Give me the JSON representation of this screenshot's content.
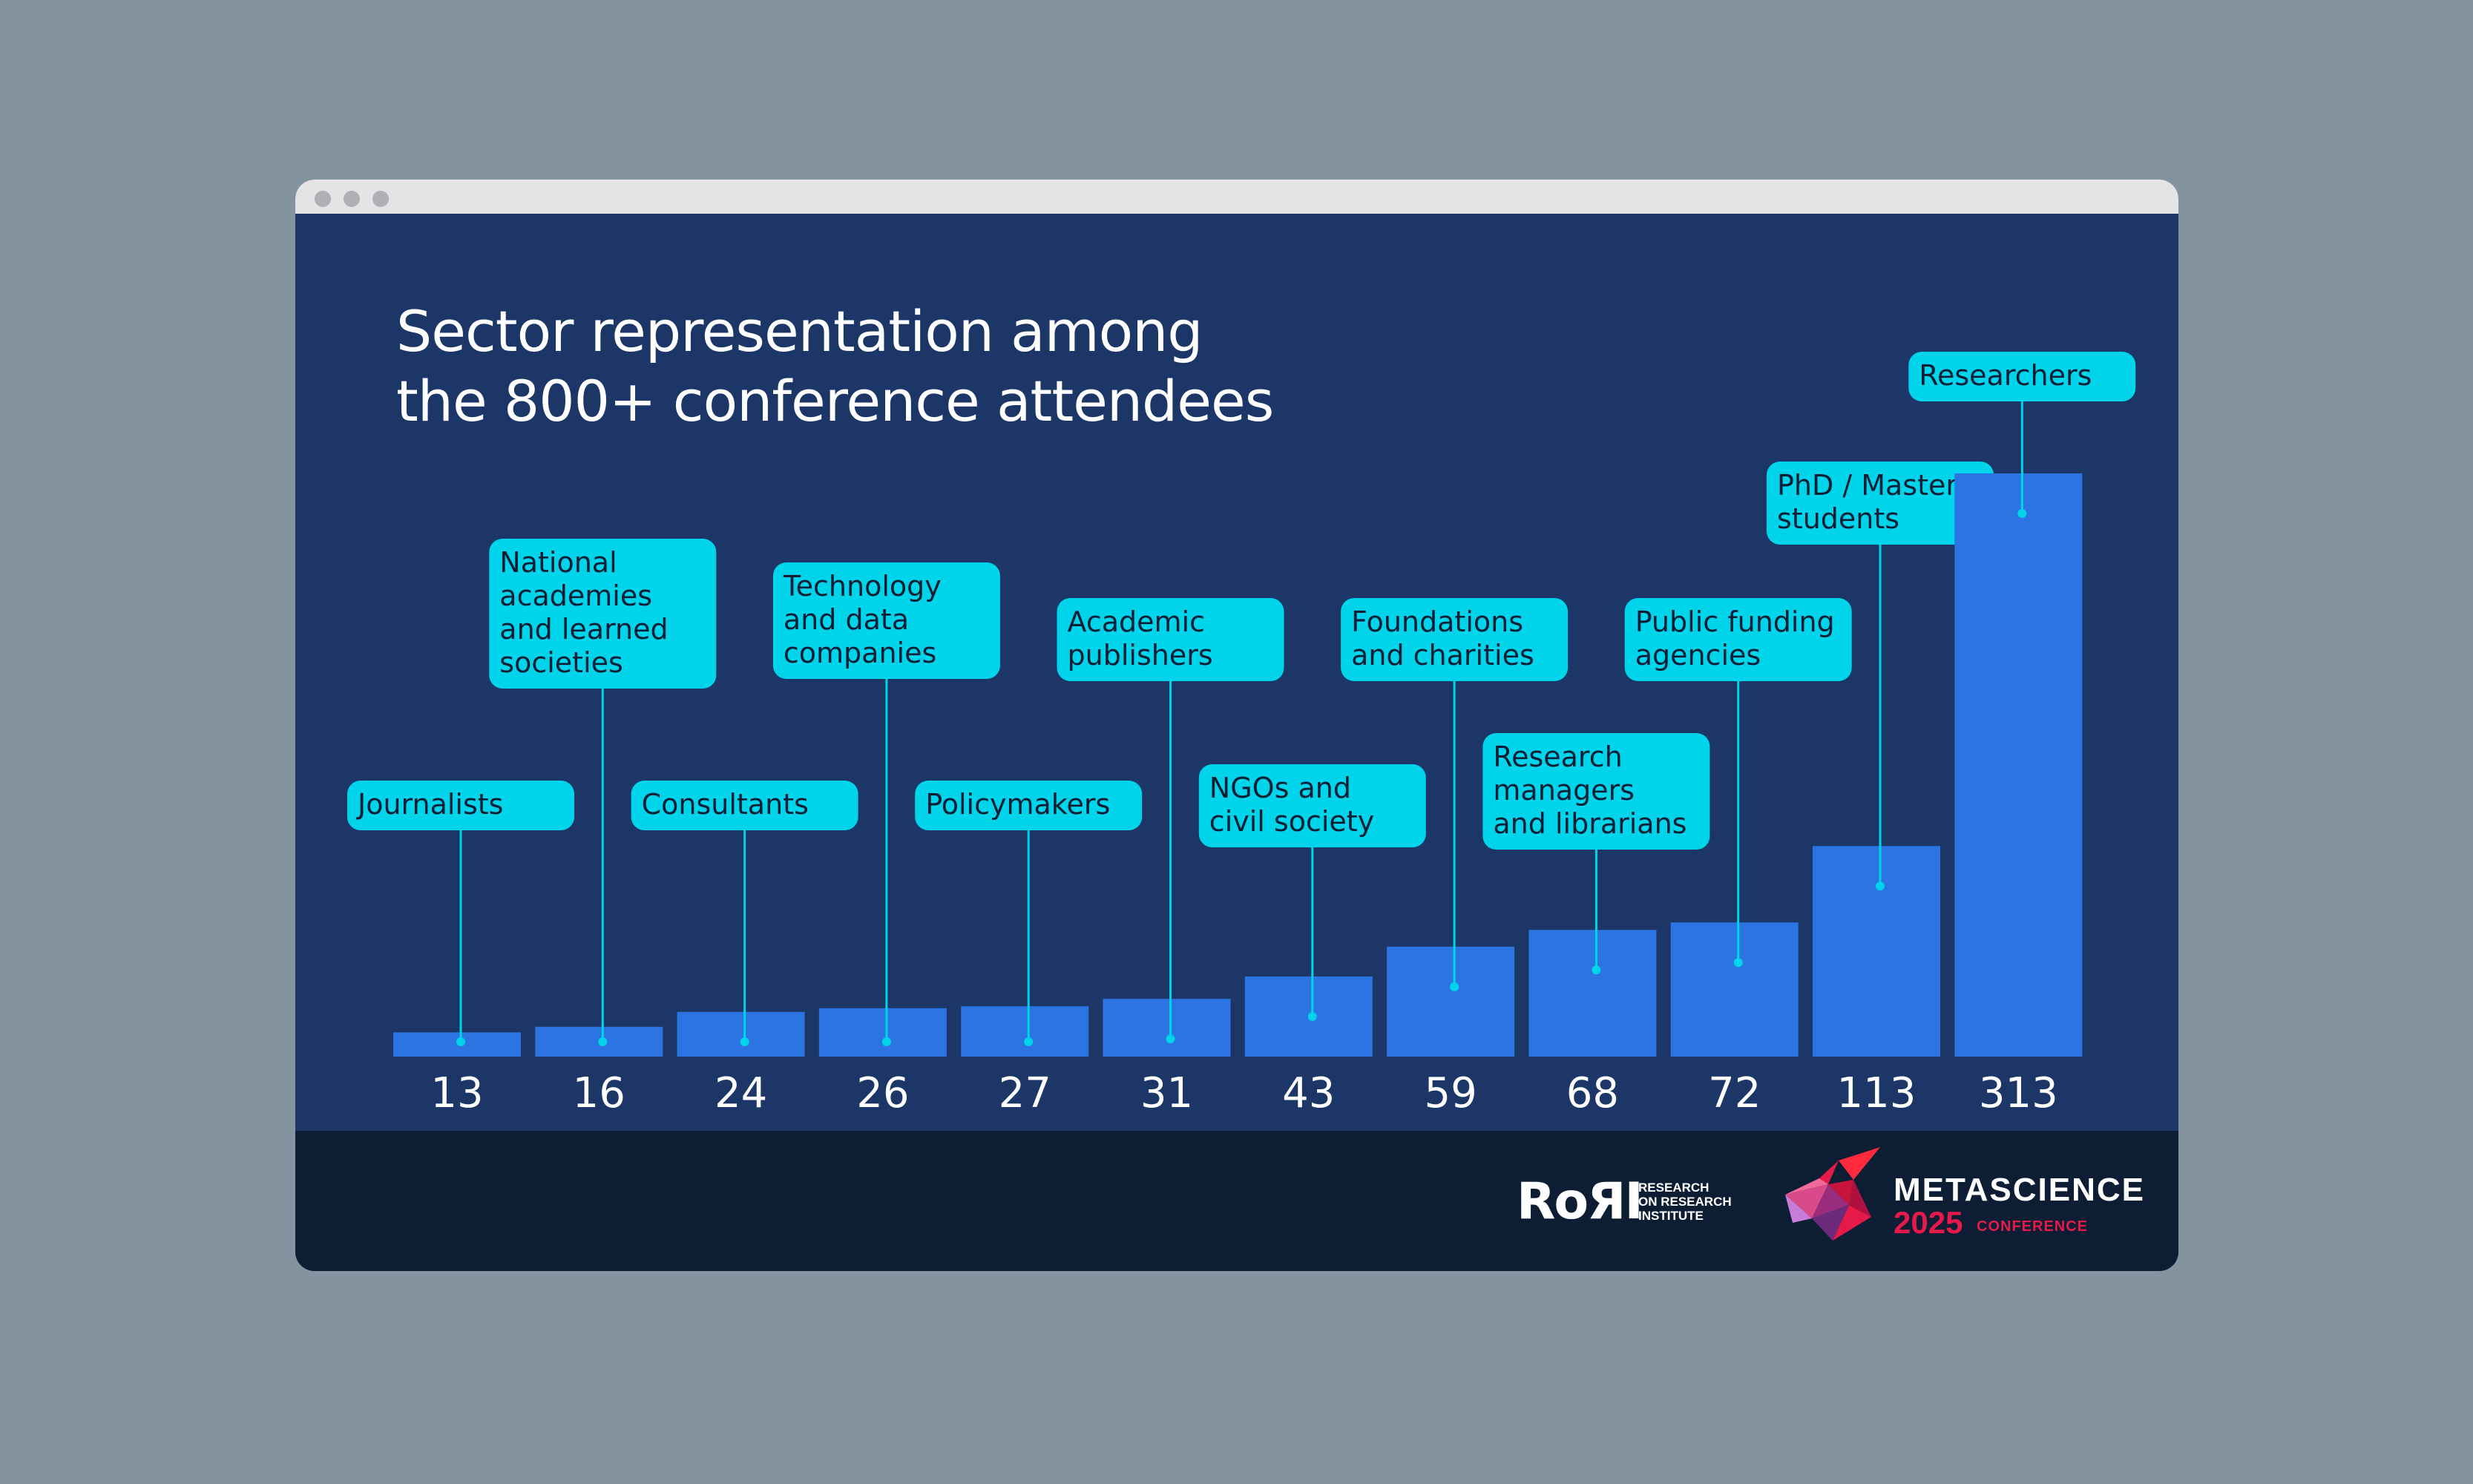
{
  "chart_data": {
    "type": "bar",
    "title": "Sector representation among\nthe 800+ conference attendees",
    "xlabel": "",
    "ylabel": "",
    "ylim": [
      0,
      313
    ],
    "grid": false,
    "categories": [
      "Journalists",
      "National academies and learned societies",
      "Consultants",
      "Technology and data companies",
      "Policymakers",
      "Academic publishers",
      "NGOs and civil society",
      "Foundations and charities",
      "Research managers and librarians",
      "Public funding agencies",
      "PhD / Masters' students",
      "Researchers"
    ],
    "category_display": [
      [
        "Journalists"
      ],
      [
        "National",
        "academies",
        "and learned",
        "societies"
      ],
      [
        "Consultants"
      ],
      [
        "Technology",
        "and data",
        "companies"
      ],
      [
        "Policymakers"
      ],
      [
        "Academic",
        "publishers"
      ],
      [
        "NGOs and",
        "civil society"
      ],
      [
        "Foundations",
        "and charities"
      ],
      [
        "Research",
        "managers",
        "and librarians"
      ],
      [
        "Public funding",
        "agencies"
      ],
      [
        "PhD / Masters’",
        "students"
      ],
      [
        "Researchers"
      ]
    ],
    "values": [
      13,
      16,
      24,
      26,
      27,
      31,
      43,
      59,
      68,
      72,
      113,
      313
    ],
    "value_labels": [
      "13",
      "16",
      "24",
      "26",
      "27",
      "31",
      "43",
      "59",
      "68",
      "72",
      "113",
      "313"
    ]
  },
  "colors": {
    "background": "#8393a0",
    "panel": "#1d3668",
    "footer": "#0d1e34",
    "bar": "#2b74e2",
    "callout": "#00d4ea",
    "callout_text": "#0d1e34",
    "value_text": "#ffffff",
    "brand_red": "#e5194a"
  },
  "footer": {
    "rori": {
      "mark": "RoЯI",
      "lines": [
        "RESEARCH",
        "ON RESEARCH",
        "INSTITUTE"
      ]
    },
    "metascience": {
      "name": "METASCIENCE",
      "year": "2025",
      "sub": "CONFERENCE"
    }
  }
}
